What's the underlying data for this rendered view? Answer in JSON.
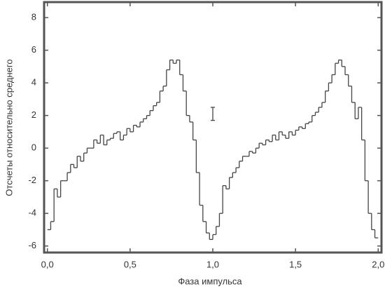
{
  "chart_data": {
    "type": "histogram",
    "xlabel": "Фаза импульса",
    "ylabel": "Отсчеты относительно среднего",
    "bins": [
      0.0,
      0.02,
      0.04,
      0.06,
      0.08,
      0.1,
      0.12,
      0.14,
      0.16,
      0.18,
      0.2,
      0.22,
      0.24,
      0.26,
      0.28,
      0.3,
      0.32,
      0.34,
      0.36,
      0.38,
      0.4,
      0.42,
      0.44,
      0.46,
      0.48,
      0.5,
      0.52,
      0.54,
      0.56,
      0.58,
      0.6,
      0.62,
      0.64,
      0.66,
      0.68,
      0.7,
      0.72,
      0.74,
      0.76,
      0.78,
      0.8,
      0.82,
      0.84,
      0.86,
      0.88,
      0.9,
      0.92,
      0.94,
      0.96,
      0.98,
      1.0,
      1.02,
      1.04,
      1.06,
      1.08,
      1.1,
      1.12,
      1.14,
      1.16,
      1.18,
      1.2,
      1.22,
      1.24,
      1.26,
      1.28,
      1.3,
      1.32,
      1.34,
      1.36,
      1.38,
      1.4,
      1.42,
      1.44,
      1.46,
      1.48,
      1.5,
      1.52,
      1.54,
      1.56,
      1.58,
      1.6,
      1.62,
      1.64,
      1.66,
      1.68,
      1.7,
      1.72,
      1.74,
      1.76,
      1.78,
      1.8,
      1.82,
      1.84,
      1.86,
      1.88,
      1.9,
      1.92,
      1.94,
      1.96,
      1.98,
      2.0
    ],
    "values": [
      -5,
      -4.5,
      -2.5,
      -3,
      -2,
      -2,
      -1.5,
      -1,
      -1.2,
      -0.5,
      -0.8,
      -0.3,
      0,
      0,
      0.5,
      0.3,
      0.8,
      0.2,
      0.5,
      0.6,
      0.9,
      1,
      0.5,
      0.8,
      1.2,
      1,
      1.4,
      1.3,
      1.6,
      1.8,
      2,
      2.3,
      2.6,
      2.8,
      3.5,
      3.8,
      4.8,
      5.4,
      5.2,
      5.4,
      4.5,
      3.5,
      2,
      1.6,
      0.5,
      -1.5,
      -3.5,
      -4.5,
      -5.2,
      -5.6,
      -5.3,
      -4.8,
      -4,
      -2.3,
      -2.5,
      -1.8,
      -1.5,
      -1.2,
      -0.8,
      -0.5,
      -0.5,
      -0.2,
      -0.3,
      0,
      0.3,
      0.2,
      0.5,
      0.4,
      0.8,
      0.5,
      1,
      0.8,
      0.6,
      1,
      0.8,
      1.1,
      1.3,
      1.2,
      1.5,
      1.6,
      2,
      2.2,
      2.5,
      2.8,
      3.5,
      4,
      4.5,
      5.2,
      5.4,
      5,
      4.5,
      3.8,
      2.8,
      1.8,
      2.5,
      0.5,
      -2,
      -4,
      -5,
      -5.5
    ],
    "color": "#444444",
    "errorbar": {
      "x": 1.0,
      "y": 2.1,
      "err": 0.4
    },
    "xlim": [
      -0.02,
      2.02
    ],
    "ylim": [
      -6.4,
      8.95
    ],
    "xticks": [
      {
        "value": 0,
        "label": "0,0"
      },
      {
        "value": 0.5,
        "label": "0,5"
      },
      {
        "value": 1,
        "label": "1,0"
      },
      {
        "value": 1.5,
        "label": "1,5"
      },
      {
        "value": 2,
        "label": "2,0"
      }
    ],
    "yticks": [
      -6,
      -4,
      -2,
      0,
      2,
      4,
      6,
      8
    ]
  }
}
